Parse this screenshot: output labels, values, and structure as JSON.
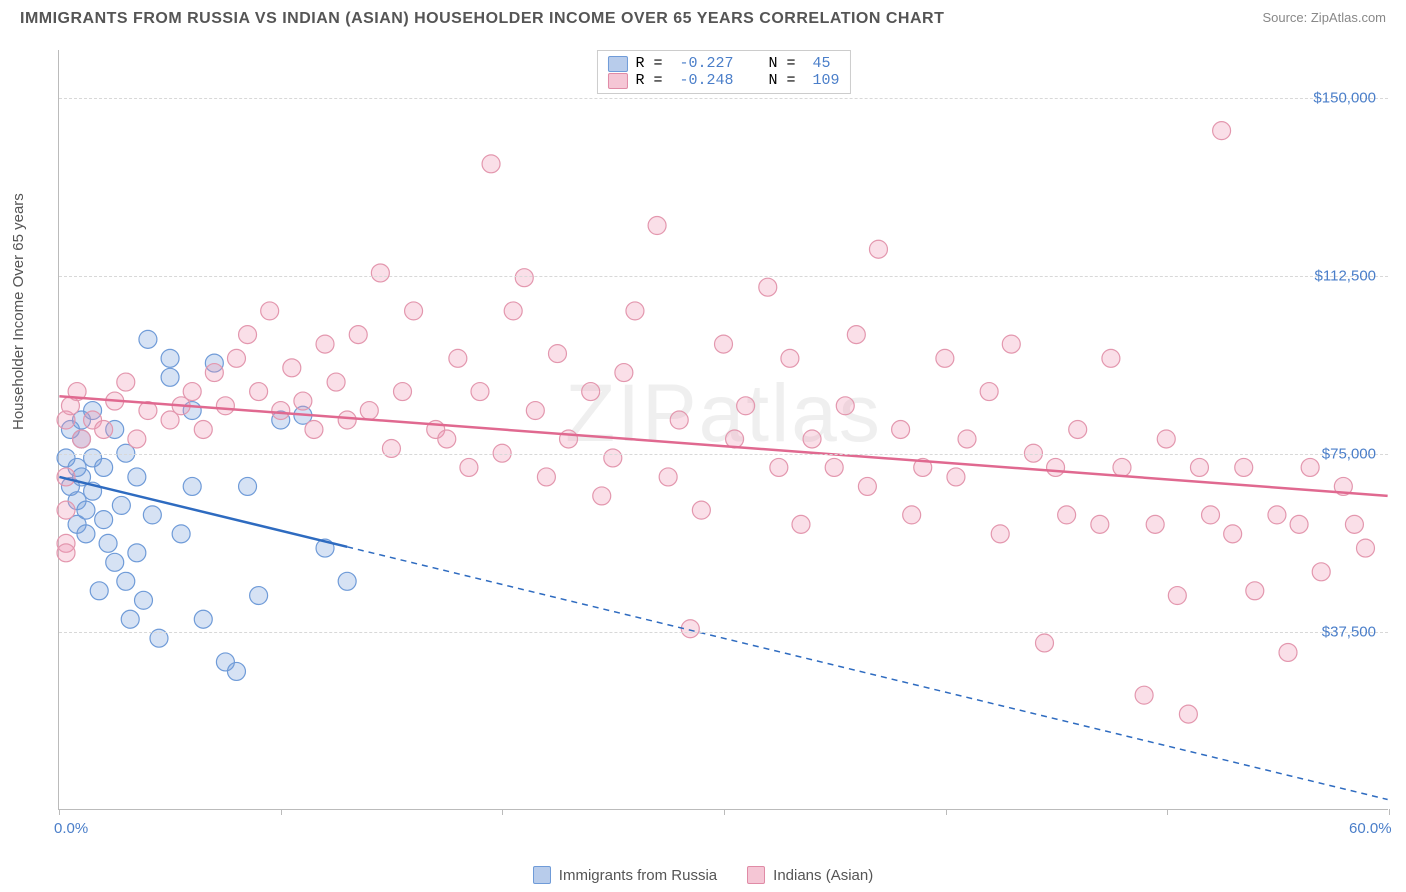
{
  "title": "IMMIGRANTS FROM RUSSIA VS INDIAN (ASIAN) HOUSEHOLDER INCOME OVER 65 YEARS CORRELATION CHART",
  "source": "Source: ZipAtlas.com",
  "watermark": "ZIPatlas",
  "ylabel": "Householder Income Over 65 years",
  "chart": {
    "type": "scatter",
    "xlim": [
      0,
      60
    ],
    "ylim": [
      0,
      160000
    ],
    "x_ticks": [
      0,
      10,
      20,
      30,
      40,
      50,
      60
    ],
    "x_tick_labels": {
      "0": "0.0%",
      "60": "60.0%"
    },
    "y_gridlines": [
      37500,
      75000,
      112500,
      150000
    ],
    "y_tick_labels": [
      "$37,500",
      "$75,000",
      "$112,500",
      "$150,000"
    ],
    "background": "#ffffff",
    "grid_color": "#d8d8d8",
    "axis_color": "#bbbbbb",
    "label_color": "#4a7ec9",
    "title_color": "#555555",
    "marker_radius": 9,
    "marker_stroke_width": 1.2
  },
  "series": [
    {
      "name": "Immigrants from Russia",
      "fill": "rgba(120,160,220,0.3)",
      "stroke": "#6f9bd8",
      "swatch_fill": "#b8cceb",
      "swatch_border": "#6f9bd8",
      "R": "-0.227",
      "N": "45",
      "trend": {
        "x1": 0,
        "y1": 70000,
        "x2": 60,
        "y2": 2000,
        "solid_until_x": 13,
        "color": "#2e6bc0",
        "width": 2.5
      },
      "points": [
        [
          0.3,
          74000
        ],
        [
          0.5,
          80000
        ],
        [
          0.5,
          68000
        ],
        [
          0.8,
          72000
        ],
        [
          0.8,
          65000
        ],
        [
          0.8,
          60000
        ],
        [
          1.0,
          78000
        ],
        [
          1.0,
          82000
        ],
        [
          1.0,
          70000
        ],
        [
          1.2,
          63000
        ],
        [
          1.2,
          58000
        ],
        [
          1.5,
          84000
        ],
        [
          1.5,
          74000
        ],
        [
          1.5,
          67000
        ],
        [
          1.8,
          46000
        ],
        [
          2.0,
          72000
        ],
        [
          2.0,
          61000
        ],
        [
          2.2,
          56000
        ],
        [
          2.5,
          80000
        ],
        [
          2.5,
          52000
        ],
        [
          2.8,
          64000
        ],
        [
          3.0,
          75000
        ],
        [
          3.0,
          48000
        ],
        [
          3.2,
          40000
        ],
        [
          3.5,
          70000
        ],
        [
          3.5,
          54000
        ],
        [
          3.8,
          44000
        ],
        [
          4.0,
          99000
        ],
        [
          4.2,
          62000
        ],
        [
          4.5,
          36000
        ],
        [
          5.0,
          95000
        ],
        [
          5.0,
          91000
        ],
        [
          5.5,
          58000
        ],
        [
          6.0,
          84000
        ],
        [
          6.0,
          68000
        ],
        [
          6.5,
          40000
        ],
        [
          7.0,
          94000
        ],
        [
          7.5,
          31000
        ],
        [
          8.0,
          29000
        ],
        [
          8.5,
          68000
        ],
        [
          9.0,
          45000
        ],
        [
          10.0,
          82000
        ],
        [
          11.0,
          83000
        ],
        [
          12.0,
          55000
        ],
        [
          13.0,
          48000
        ]
      ]
    },
    {
      "name": "Indians (Asian)",
      "fill": "rgba(240,150,180,0.3)",
      "stroke": "#e397ae",
      "swatch_fill": "#f5c6d5",
      "swatch_border": "#e08ba6",
      "R": "-0.248",
      "N": "109",
      "trend": {
        "x1": 0,
        "y1": 87000,
        "x2": 60,
        "y2": 66000,
        "solid_until_x": 60,
        "color": "#e06990",
        "width": 2.5
      },
      "points": [
        [
          0.3,
          82000
        ],
        [
          0.3,
          70000
        ],
        [
          0.3,
          63000
        ],
        [
          0.3,
          56000
        ],
        [
          0.3,
          54000
        ],
        [
          0.5,
          85000
        ],
        [
          0.8,
          88000
        ],
        [
          1.0,
          78000
        ],
        [
          1.5,
          82000
        ],
        [
          2.0,
          80000
        ],
        [
          2.5,
          86000
        ],
        [
          3.0,
          90000
        ],
        [
          3.5,
          78000
        ],
        [
          4.0,
          84000
        ],
        [
          5.0,
          82000
        ],
        [
          5.5,
          85000
        ],
        [
          6.0,
          88000
        ],
        [
          6.5,
          80000
        ],
        [
          7.0,
          92000
        ],
        [
          7.5,
          85000
        ],
        [
          8.0,
          95000
        ],
        [
          8.5,
          100000
        ],
        [
          9.0,
          88000
        ],
        [
          9.5,
          105000
        ],
        [
          10.0,
          84000
        ],
        [
          10.5,
          93000
        ],
        [
          11.0,
          86000
        ],
        [
          11.5,
          80000
        ],
        [
          12.0,
          98000
        ],
        [
          12.5,
          90000
        ],
        [
          13.0,
          82000
        ],
        [
          13.5,
          100000
        ],
        [
          14.0,
          84000
        ],
        [
          14.5,
          113000
        ],
        [
          15.0,
          76000
        ],
        [
          15.5,
          88000
        ],
        [
          16.0,
          105000
        ],
        [
          17.0,
          80000
        ],
        [
          17.5,
          78000
        ],
        [
          18.0,
          95000
        ],
        [
          18.5,
          72000
        ],
        [
          19.0,
          88000
        ],
        [
          19.5,
          136000
        ],
        [
          20.0,
          75000
        ],
        [
          20.5,
          105000
        ],
        [
          21.0,
          112000
        ],
        [
          21.5,
          84000
        ],
        [
          22.0,
          70000
        ],
        [
          22.5,
          96000
        ],
        [
          23.0,
          78000
        ],
        [
          24.0,
          88000
        ],
        [
          24.5,
          66000
        ],
        [
          25.0,
          74000
        ],
        [
          25.5,
          92000
        ],
        [
          26.0,
          105000
        ],
        [
          27.0,
          123000
        ],
        [
          27.5,
          70000
        ],
        [
          28.0,
          82000
        ],
        [
          28.5,
          38000
        ],
        [
          29.0,
          63000
        ],
        [
          30.0,
          98000
        ],
        [
          30.5,
          78000
        ],
        [
          31.0,
          85000
        ],
        [
          32.0,
          110000
        ],
        [
          32.5,
          72000
        ],
        [
          33.0,
          95000
        ],
        [
          33.5,
          60000
        ],
        [
          34.0,
          78000
        ],
        [
          35.0,
          72000
        ],
        [
          35.5,
          85000
        ],
        [
          36.0,
          100000
        ],
        [
          36.5,
          68000
        ],
        [
          37.0,
          118000
        ],
        [
          38.0,
          80000
        ],
        [
          38.5,
          62000
        ],
        [
          39.0,
          72000
        ],
        [
          40.0,
          95000
        ],
        [
          40.5,
          70000
        ],
        [
          41.0,
          78000
        ],
        [
          42.0,
          88000
        ],
        [
          42.5,
          58000
        ],
        [
          43.0,
          98000
        ],
        [
          44.0,
          75000
        ],
        [
          44.5,
          35000
        ],
        [
          45.0,
          72000
        ],
        [
          45.5,
          62000
        ],
        [
          46.0,
          80000
        ],
        [
          47.0,
          60000
        ],
        [
          47.5,
          95000
        ],
        [
          48.0,
          72000
        ],
        [
          49.0,
          24000
        ],
        [
          49.5,
          60000
        ],
        [
          50.0,
          78000
        ],
        [
          50.5,
          45000
        ],
        [
          51.0,
          20000
        ],
        [
          51.5,
          72000
        ],
        [
          52.0,
          62000
        ],
        [
          52.5,
          143000
        ],
        [
          53.0,
          58000
        ],
        [
          53.5,
          72000
        ],
        [
          54.0,
          46000
        ],
        [
          55.0,
          62000
        ],
        [
          55.5,
          33000
        ],
        [
          56.0,
          60000
        ],
        [
          56.5,
          72000
        ],
        [
          57.0,
          50000
        ],
        [
          58.0,
          68000
        ],
        [
          58.5,
          60000
        ],
        [
          59.0,
          55000
        ]
      ]
    }
  ],
  "bottom_legend": [
    {
      "label": "Immigrants from Russia",
      "series_idx": 0
    },
    {
      "label": "Indians (Asian)",
      "series_idx": 1
    }
  ]
}
